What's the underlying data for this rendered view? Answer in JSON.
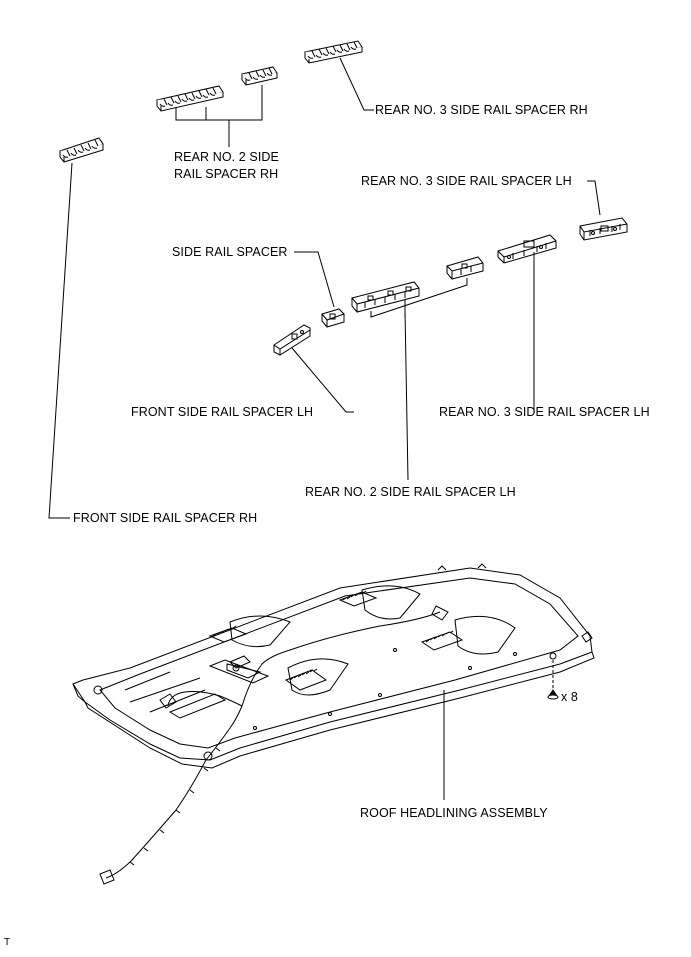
{
  "labels": {
    "rear_no3_rh": "REAR NO. 3 SIDE RAIL SPACER RH",
    "rear_no2_rh_line1": "REAR NO. 2 SIDE",
    "rear_no2_rh_line2": "RAIL SPACER RH",
    "rear_no3_lh_top": "REAR NO. 3 SIDE RAIL SPACER LH",
    "side_rail_spacer": "SIDE RAIL SPACER",
    "front_lh": "FRONT SIDE RAIL SPACER LH",
    "rear_no3_lh_right": "REAR NO. 3 SIDE RAIL SPACER LH",
    "rear_no2_lh": "REAR NO. 2 SIDE RAIL SPACER LH",
    "front_rh": "FRONT SIDE RAIL SPACER RH",
    "clip_qty": "x 8",
    "headlining": "ROOF HEADLINING ASSEMBLY",
    "corner_mark": "T"
  }
}
